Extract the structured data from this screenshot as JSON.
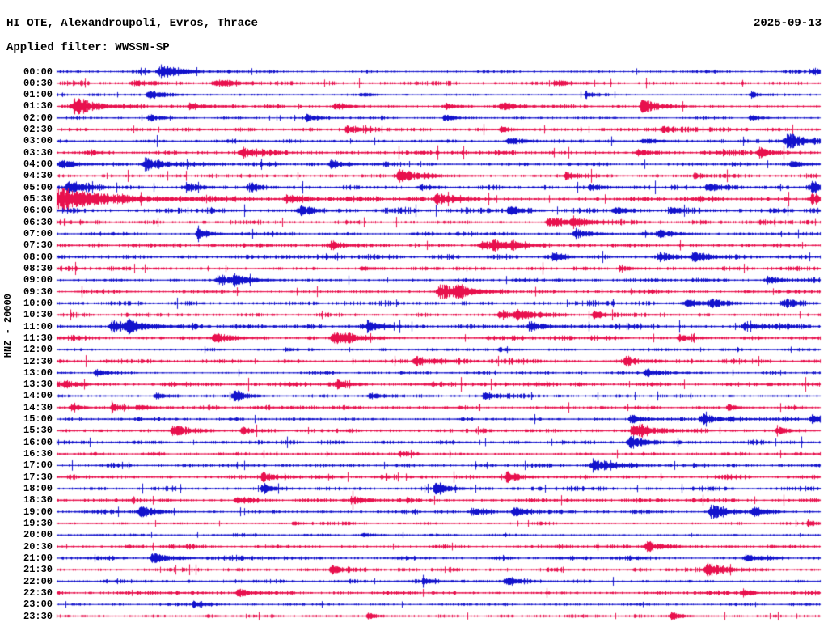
{
  "header": {
    "title": "HI OTE, Alexandroupoli, Evros, Thrace",
    "date": "2025-09-13",
    "filter": "Applied filter: WWSSN-SP"
  },
  "axis": {
    "scale_label": "HNZ - 20000"
  },
  "colors": {
    "trace_blue": "#1212cc",
    "trace_red": "#e8104d",
    "text": "#000000",
    "background": "#ffffff"
  },
  "chart_data": {
    "type": "line",
    "subtype": "helicorder-seismogram",
    "station": "HI OTE, Alexandroupoli, Evros, Thrace",
    "date": "2025-09-13",
    "filter": "WWSSN-SP",
    "channel_scale": "HNZ - 20000",
    "minutes_per_row": 30,
    "rows_count": 48,
    "legend": "alternating blue/red traces, one 30-minute segment per row; events given as [position_fraction_of_row, amplitude_px, width_px]",
    "rows": [
      {
        "time": "00:00",
        "color": "blue",
        "noise": 0.9,
        "events": [
          [
            0.138,
            7,
            10
          ],
          [
            0.992,
            3.5,
            6
          ]
        ]
      },
      {
        "time": "00:30",
        "color": "red",
        "noise": 1.4,
        "events": [
          [
            0.1,
            2.5,
            8
          ],
          [
            0.21,
            4,
            10
          ],
          [
            0.655,
            2.5,
            8
          ]
        ]
      },
      {
        "time": "01:00",
        "color": "blue",
        "noise": 0.8,
        "events": [
          [
            0.122,
            5,
            8
          ],
          [
            0.4,
            2,
            5
          ],
          [
            0.693,
            4,
            4
          ],
          [
            0.91,
            3,
            5
          ]
        ]
      },
      {
        "time": "01:30",
        "color": "red",
        "noise": 1.2,
        "events": [
          [
            0.026,
            8,
            12
          ],
          [
            0.175,
            4,
            7
          ],
          [
            0.365,
            3.5,
            6
          ],
          [
            0.51,
            3,
            6
          ],
          [
            0.582,
            4,
            7
          ],
          [
            0.768,
            9,
            7
          ]
        ]
      },
      {
        "time": "02:00",
        "color": "blue",
        "noise": 0.9,
        "events": [
          [
            0.122,
            4,
            6
          ],
          [
            0.328,
            3.5,
            6
          ],
          [
            0.508,
            3.5,
            5
          ],
          [
            0.91,
            3,
            5
          ]
        ]
      },
      {
        "time": "02:30",
        "color": "red",
        "noise": 1.5,
        "events": [
          [
            0.38,
            3.5,
            7
          ],
          [
            0.582,
            3,
            6
          ],
          [
            0.794,
            2.5,
            5
          ]
        ]
      },
      {
        "time": "03:00",
        "color": "blue",
        "noise": 1.3,
        "events": [
          [
            0.593,
            4,
            7
          ],
          [
            0.768,
            3.5,
            6
          ],
          [
            0.958,
            7,
            9
          ]
        ]
      },
      {
        "time": "03:30",
        "color": "red",
        "noise": 1.9,
        "events": [
          [
            0.244,
            3.5,
            7
          ],
          [
            0.762,
            3.5,
            6
          ],
          [
            0.921,
            4.5,
            7
          ]
        ]
      },
      {
        "time": "04:00",
        "color": "blue",
        "noise": 1.3,
        "events": [
          [
            0.005,
            5,
            8
          ],
          [
            0.117,
            6.5,
            10
          ],
          [
            0.36,
            4,
            7
          ],
          [
            0.963,
            3.5,
            5
          ]
        ]
      },
      {
        "time": "04:30",
        "color": "red",
        "noise": 1.6,
        "events": [
          [
            0.45,
            7,
            10
          ],
          [
            0.667,
            3.5,
            6
          ],
          [
            0.836,
            3,
            5
          ]
        ]
      },
      {
        "time": "05:00",
        "color": "blue",
        "noise": 1.5,
        "events": [
          [
            0.016,
            6,
            9
          ],
          [
            0.17,
            4.5,
            7
          ],
          [
            0.254,
            4,
            6
          ],
          [
            0.477,
            3.5,
            6
          ],
          [
            0.7,
            3.5,
            6
          ],
          [
            0.853,
            4.5,
            7
          ],
          [
            0.99,
            5,
            7
          ]
        ]
      },
      {
        "time": "05:30",
        "color": "red",
        "noise": 1.7,
        "events": [
          [
            0.0,
            12,
            28
          ],
          [
            0.302,
            5,
            8
          ],
          [
            0.498,
            6,
            9
          ],
          [
            0.99,
            6,
            8
          ]
        ]
      },
      {
        "time": "06:00",
        "color": "blue",
        "noise": 1.8,
        "events": [
          [
            0.318,
            5,
            8
          ],
          [
            0.593,
            3.5,
            6
          ],
          [
            0.731,
            3.5,
            6
          ],
          [
            0.805,
            3.5,
            6
          ]
        ]
      },
      {
        "time": "06:30",
        "color": "red",
        "noise": 1.4,
        "events": [
          [
            0.646,
            6,
            9
          ],
          [
            0.677,
            5,
            8
          ]
        ]
      },
      {
        "time": "07:00",
        "color": "blue",
        "noise": 1.2,
        "events": [
          [
            0.185,
            8.5,
            5
          ],
          [
            0.68,
            5,
            7
          ],
          [
            0.79,
            4,
            6
          ]
        ]
      },
      {
        "time": "07:30",
        "color": "red",
        "noise": 1.4,
        "events": [
          [
            0.36,
            4,
            7
          ],
          [
            0.557,
            5,
            8
          ],
          [
            0.572,
            6,
            5
          ],
          [
            0.597,
            4.5,
            6
          ]
        ]
      },
      {
        "time": "08:00",
        "color": "blue",
        "noise": 1.6,
        "events": [
          [
            0.65,
            3.5,
            6
          ],
          [
            0.79,
            5,
            8
          ],
          [
            0.835,
            5.5,
            8
          ]
        ]
      },
      {
        "time": "08:30",
        "color": "red",
        "noise": 1.5,
        "events": [
          [
            0.4,
            2.5,
            6
          ],
          [
            0.738,
            3.5,
            6
          ]
        ]
      },
      {
        "time": "09:00",
        "color": "blue",
        "noise": 1.3,
        "events": [
          [
            0.212,
            6,
            8
          ],
          [
            0.233,
            5.5,
            7
          ],
          [
            0.932,
            4.5,
            7
          ]
        ]
      },
      {
        "time": "09:30",
        "color": "red",
        "noise": 1.4,
        "events": [
          [
            0.503,
            9,
            10
          ],
          [
            0.525,
            6,
            7
          ]
        ]
      },
      {
        "time": "10:00",
        "color": "blue",
        "noise": 1.6,
        "events": [
          [
            0.826,
            4.5,
            7
          ],
          [
            0.858,
            4.5,
            7
          ],
          [
            0.953,
            4,
            6
          ]
        ]
      },
      {
        "time": "10:30",
        "color": "red",
        "noise": 1.3,
        "events": [
          [
            0.582,
            5,
            8
          ],
          [
            0.604,
            4.5,
            7
          ],
          [
            0.704,
            3.5,
            6
          ]
        ]
      },
      {
        "time": "11:00",
        "color": "blue",
        "noise": 1.7,
        "events": [
          [
            0.074,
            7,
            9
          ],
          [
            0.095,
            6,
            8
          ],
          [
            0.408,
            4.5,
            7
          ],
          [
            0.62,
            4.5,
            7
          ],
          [
            0.9,
            3.5,
            6
          ]
        ]
      },
      {
        "time": "11:30",
        "color": "red",
        "noise": 1.4,
        "events": [
          [
            0.207,
            4.5,
            7
          ],
          [
            0.365,
            7.5,
            11
          ],
          [
            0.816,
            3.5,
            6
          ]
        ]
      },
      {
        "time": "12:00",
        "color": "blue",
        "noise": 0.8,
        "events": [
          [
            0.3,
            2,
            4
          ],
          [
            0.58,
            2.5,
            5
          ]
        ]
      },
      {
        "time": "12:30",
        "color": "red",
        "noise": 1.5,
        "events": [
          [
            0.471,
            5,
            8
          ],
          [
            0.747,
            4.5,
            7
          ]
        ]
      },
      {
        "time": "13:00",
        "color": "blue",
        "noise": 0.9,
        "events": [
          [
            0.051,
            4.5,
            4
          ],
          [
            0.773,
            4.5,
            7
          ]
        ]
      },
      {
        "time": "13:30",
        "color": "red",
        "noise": 1.9,
        "events": [
          [
            0.01,
            3.5,
            6
          ],
          [
            0.369,
            4,
            5
          ]
        ]
      },
      {
        "time": "14:00",
        "color": "blue",
        "noise": 1.1,
        "events": [
          [
            0.13,
            3,
            6
          ],
          [
            0.233,
            7,
            6
          ],
          [
            0.41,
            3.5,
            6
          ],
          [
            0.56,
            3.5,
            6
          ]
        ]
      },
      {
        "time": "14:30",
        "color": "red",
        "noise": 1.2,
        "events": [
          [
            0.02,
            3,
            5
          ],
          [
            0.073,
            3.5,
            5
          ],
          [
            0.106,
            3.5,
            5
          ],
          [
            0.88,
            3,
            5
          ]
        ]
      },
      {
        "time": "15:00",
        "color": "blue",
        "noise": 1.2,
        "events": [
          [
            0.752,
            4,
            6
          ],
          [
            0.846,
            5.5,
            8
          ],
          [
            0.99,
            5.5,
            7
          ]
        ]
      },
      {
        "time": "15:30",
        "color": "red",
        "noise": 1.5,
        "events": [
          [
            0.154,
            5.5,
            8
          ],
          [
            0.243,
            4,
            6
          ],
          [
            0.757,
            8,
            10
          ],
          [
            0.944,
            4,
            6
          ]
        ]
      },
      {
        "time": "16:00",
        "color": "blue",
        "noise": 1.3,
        "events": [
          [
            0.752,
            6,
            9
          ]
        ]
      },
      {
        "time": "16:30",
        "color": "red",
        "noise": 1.1,
        "events": [
          [
            0.45,
            2,
            5
          ]
        ]
      },
      {
        "time": "17:00",
        "color": "blue",
        "noise": 1.3,
        "events": [
          [
            0.703,
            6.5,
            8
          ]
        ]
      },
      {
        "time": "17:30",
        "color": "red",
        "noise": 1.5,
        "events": [
          [
            0.27,
            4.5,
            7
          ],
          [
            0.59,
            5.5,
            7
          ]
        ]
      },
      {
        "time": "18:00",
        "color": "blue",
        "noise": 1.3,
        "events": [
          [
            0.27,
            3.5,
            6
          ],
          [
            0.497,
            6.5,
            7
          ]
        ]
      },
      {
        "time": "18:30",
        "color": "red",
        "noise": 1.4,
        "events": [
          [
            0.235,
            3,
            5
          ],
          [
            0.387,
            4.5,
            7
          ]
        ]
      },
      {
        "time": "19:00",
        "color": "blue",
        "noise": 1.2,
        "events": [
          [
            0.111,
            5.5,
            8
          ],
          [
            0.545,
            3.5,
            6
          ],
          [
            0.598,
            3.5,
            6
          ],
          [
            0.859,
            7,
            9
          ],
          [
            0.913,
            4.5,
            6
          ]
        ]
      },
      {
        "time": "19:30",
        "color": "red",
        "noise": 0.9,
        "events": [
          [
            0.31,
            2,
            4
          ],
          [
            0.985,
            3.5,
            5
          ]
        ]
      },
      {
        "time": "20:00",
        "color": "blue",
        "noise": 0.8,
        "events": [
          [
            0.4,
            1.8,
            4
          ]
        ]
      },
      {
        "time": "20:30",
        "color": "red",
        "noise": 1.2,
        "events": [
          [
            0.773,
            5.5,
            8
          ]
        ]
      },
      {
        "time": "21:00",
        "color": "blue",
        "noise": 1.4,
        "events": [
          [
            0.127,
            5,
            8
          ],
          [
            0.902,
            3.5,
            6
          ]
        ]
      },
      {
        "time": "21:30",
        "color": "red",
        "noise": 1.3,
        "events": [
          [
            0.36,
            3.5,
            6
          ],
          [
            0.853,
            7.5,
            9
          ]
        ]
      },
      {
        "time": "22:00",
        "color": "blue",
        "noise": 1.2,
        "events": [
          [
            0.48,
            3,
            5
          ],
          [
            0.588,
            4,
            7
          ]
        ]
      },
      {
        "time": "22:30",
        "color": "red",
        "noise": 1.4,
        "events": [
          [
            0.238,
            4,
            7
          ],
          [
            0.9,
            3,
            5
          ]
        ]
      },
      {
        "time": "23:00",
        "color": "blue",
        "noise": 0.9,
        "events": [
          [
            0.18,
            3,
            5
          ]
        ]
      },
      {
        "time": "23:30",
        "color": "red",
        "noise": 1.0,
        "events": [
          [
            0.408,
            3,
            5
          ],
          [
            0.805,
            3.5,
            6
          ]
        ]
      }
    ]
  }
}
